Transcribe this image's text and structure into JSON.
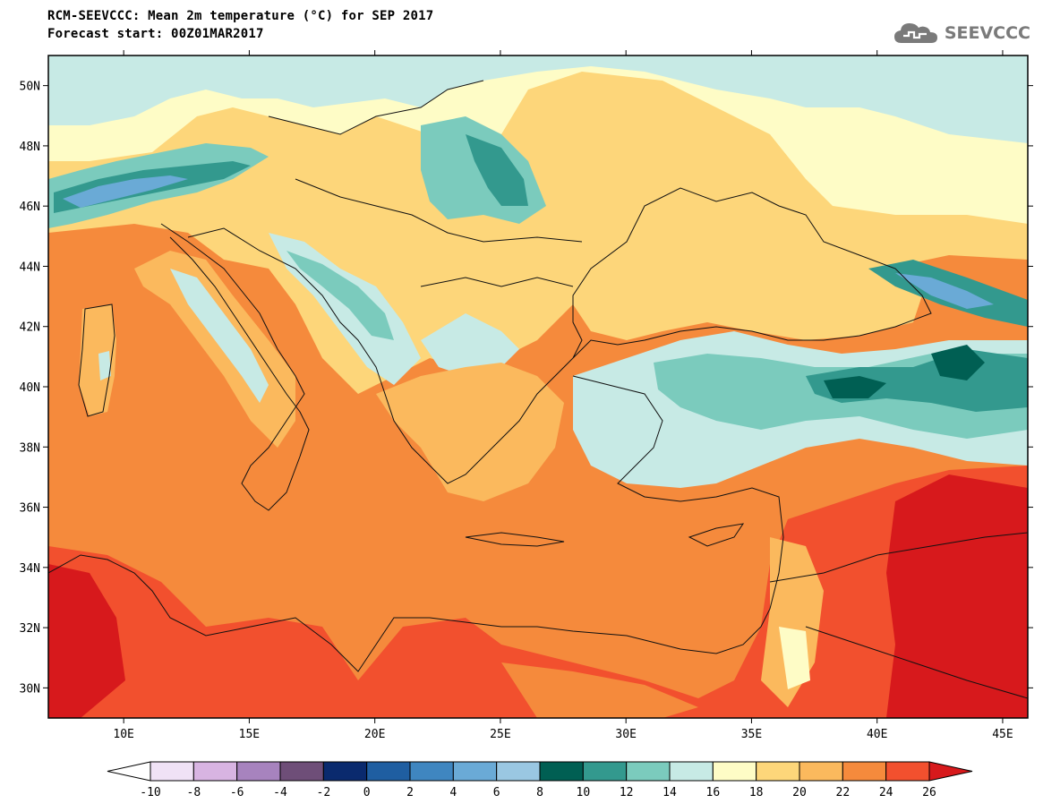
{
  "header": {
    "title": "RCM-SEEVCCC: Mean 2m temperature (°C) for SEP 2017",
    "subtitle": "Forecast start: 00Z01MAR2017",
    "logo_text": "SEEVCCC"
  },
  "map": {
    "lon_range": [
      7,
      46
    ],
    "lat_range": [
      29,
      51
    ],
    "lat_ticks": [
      {
        "value": 30,
        "label": "30N"
      },
      {
        "value": 32,
        "label": "32N"
      },
      {
        "value": 34,
        "label": "34N"
      },
      {
        "value": 36,
        "label": "36N"
      },
      {
        "value": 38,
        "label": "38N"
      },
      {
        "value": 40,
        "label": "40N"
      },
      {
        "value": 42,
        "label": "42N"
      },
      {
        "value": 44,
        "label": "44N"
      },
      {
        "value": 46,
        "label": "46N"
      },
      {
        "value": 48,
        "label": "48N"
      },
      {
        "value": 50,
        "label": "50N"
      }
    ],
    "lon_ticks": [
      {
        "value": 10,
        "label": "10E"
      },
      {
        "value": 15,
        "label": "15E"
      },
      {
        "value": 20,
        "label": "20E"
      },
      {
        "value": 25,
        "label": "25E"
      },
      {
        "value": 30,
        "label": "30E"
      },
      {
        "value": 35,
        "label": "35E"
      },
      {
        "value": 40,
        "label": "40E"
      },
      {
        "value": 45,
        "label": "45E"
      }
    ]
  },
  "colorbar": {
    "bins": [
      {
        "label": "-10",
        "color": "#ffffff"
      },
      {
        "label": "-8",
        "color": "#f0e2f6"
      },
      {
        "label": "-6",
        "color": "#d8b4e2"
      },
      {
        "label": "-4",
        "color": "#a783be"
      },
      {
        "label": "-2",
        "color": "#6e4e78"
      },
      {
        "label": "0",
        "color": "#0a2a6e"
      },
      {
        "label": "2",
        "color": "#1f5ea1"
      },
      {
        "label": "4",
        "color": "#3f86c0"
      },
      {
        "label": "6",
        "color": "#6aaad6"
      },
      {
        "label": "8",
        "color": "#9ac7e2"
      },
      {
        "label": "10",
        "color": "#005f53"
      },
      {
        "label": "12",
        "color": "#33998e"
      },
      {
        "label": "14",
        "color": "#7bcbbd"
      },
      {
        "label": "16",
        "color": "#c7eae5"
      },
      {
        "label": "18",
        "color": "#fefcc6"
      },
      {
        "label": "20",
        "color": "#fdd67a"
      },
      {
        "label": "22",
        "color": "#fbb95d"
      },
      {
        "label": "24",
        "color": "#f58a3c"
      },
      {
        "label": "26",
        "color": "#f2502e"
      }
    ],
    "over_color": "#d7191c"
  }
}
